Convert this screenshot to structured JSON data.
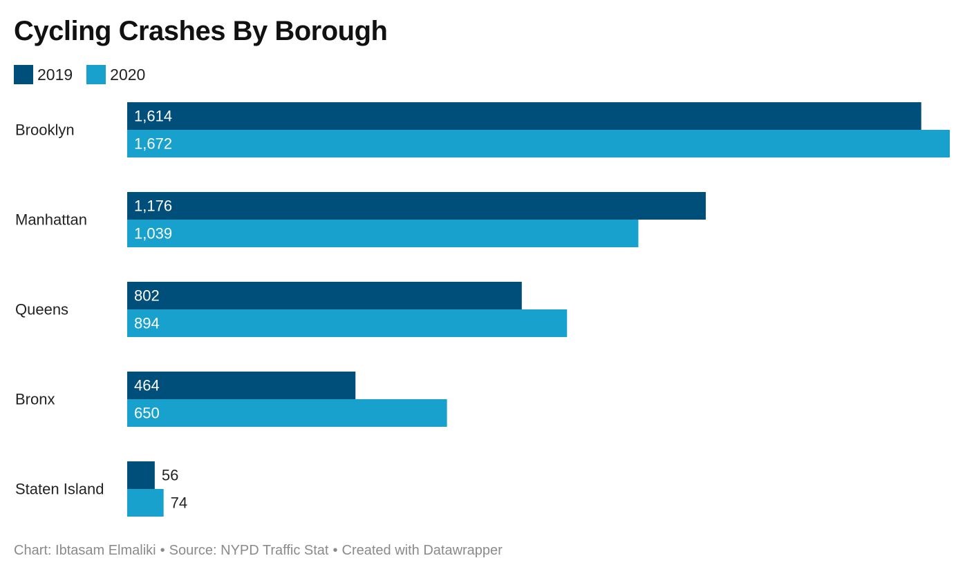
{
  "title": "Cycling Crashes By Borough",
  "footer": {
    "credit": "Chart: Ibtasam Elmaliki",
    "source": "Source: NYPD Traffic Stat",
    "created": "Created with Datawrapper",
    "separator": "•"
  },
  "colors": {
    "series_2019": "#004f7a",
    "series_2020": "#18a1cd"
  },
  "chart_data": {
    "type": "bar",
    "orientation": "horizontal",
    "categories": [
      "Brooklyn",
      "Manhattan",
      "Queens",
      "Bronx",
      "Staten Island"
    ],
    "series": [
      {
        "name": "2019",
        "values": [
          1614,
          1176,
          802,
          464,
          56
        ],
        "labels": [
          "1,614",
          "1,176",
          "802",
          "464",
          "56"
        ],
        "color": "#004f7a"
      },
      {
        "name": "2020",
        "values": [
          1672,
          1039,
          894,
          650,
          74
        ],
        "labels": [
          "1,672",
          "1,039",
          "894",
          "650",
          "74"
        ],
        "color": "#18a1cd"
      }
    ],
    "xlim": [
      0,
      1672
    ],
    "grid": false,
    "legend": "top-left",
    "value_labels": "inside-bar"
  }
}
